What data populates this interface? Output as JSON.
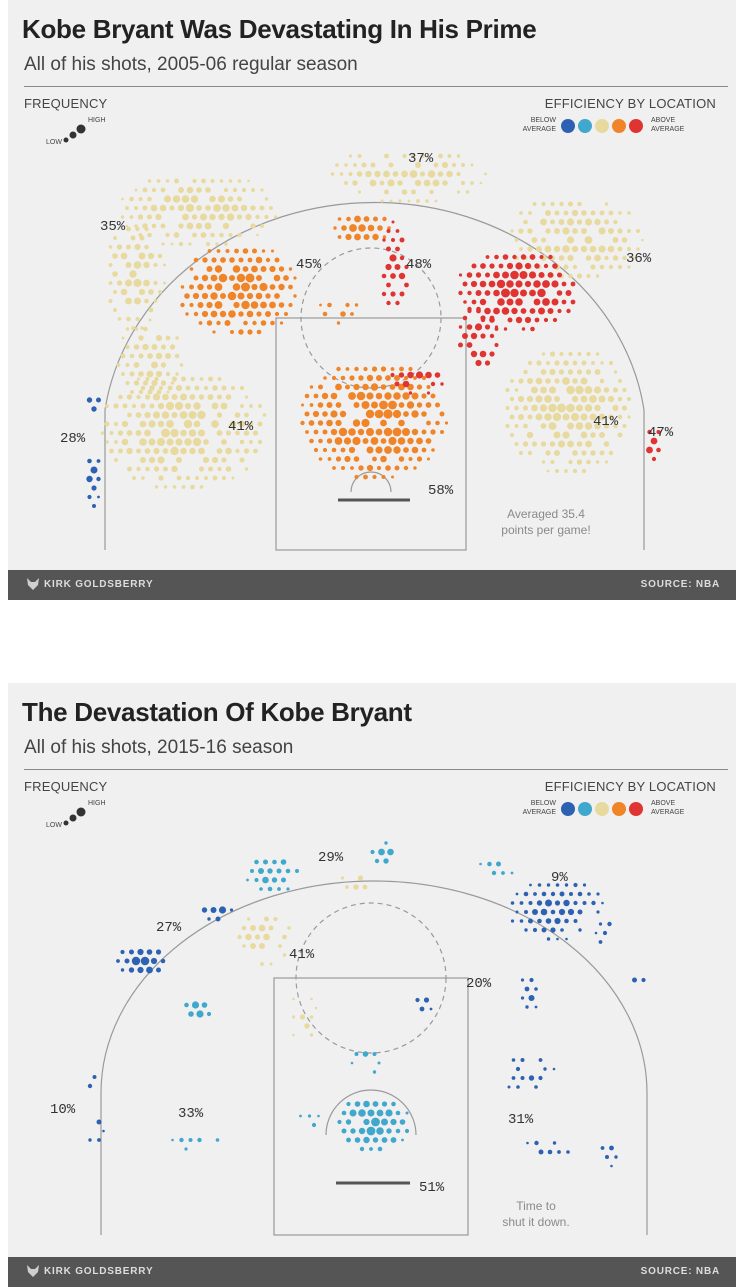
{
  "legend": {
    "frequency_label": "FREQUENCY",
    "low": "LOW",
    "high": "HIGH",
    "efficiency_label": "EFFICIENCY BY LOCATION",
    "below_line1": "BELOW",
    "below_line2": "AVERAGE",
    "above_line1": "ABOVE",
    "above_line2": "AVERAGE",
    "scale_colors": [
      "#2d62b3",
      "#3fa8cc",
      "#e8da9e",
      "#f08428",
      "#e03432"
    ]
  },
  "colors": {
    "below_dark": "#2d62b3",
    "below": "#3fa8cc",
    "average": "#e8da9e",
    "above": "#f08428",
    "above_dark": "#e03432",
    "frequency": "#333333",
    "footer": "#555555"
  },
  "footer": {
    "credit": "KIRK GOLDSBERRY",
    "source": "SOURCE: NBA",
    "fox_icon": "fox-logo-icon"
  },
  "chart_data": [
    {
      "type": "heatmap",
      "title": "Kobe Bryant Was Devastating In His Prime",
      "subtitle": "All of his shots, 2005-06 regular season",
      "note_line1": "Averaged 35.4",
      "note_line2": "points per game!",
      "zones": [
        {
          "label": "35%",
          "value": 35,
          "efficiency": "average"
        },
        {
          "label": "37%",
          "value": 37,
          "efficiency": "average"
        },
        {
          "label": "36%",
          "value": 36,
          "efficiency": "average"
        },
        {
          "label": "45%",
          "value": 45,
          "efficiency": "above"
        },
        {
          "label": "48%",
          "value": 48,
          "efficiency": "above_dark"
        },
        {
          "label": "28%",
          "value": 28,
          "efficiency": "below_dark"
        },
        {
          "label": "41%",
          "value": 41,
          "efficiency": "average"
        },
        {
          "label": "41%",
          "value": 41,
          "efficiency": "average"
        },
        {
          "label": "47%",
          "value": 47,
          "efficiency": "above_dark"
        },
        {
          "label": "58%",
          "value": 58,
          "efficiency": "above"
        }
      ]
    },
    {
      "type": "heatmap",
      "title": "The Devastation Of Kobe Bryant",
      "subtitle": "All of his shots, 2015-16 season",
      "note_line1": "Time to",
      "note_line2": "shut it down.",
      "zones": [
        {
          "label": "29%",
          "value": 29,
          "efficiency": "below"
        },
        {
          "label": "9%",
          "value": 9,
          "efficiency": "below_dark"
        },
        {
          "label": "27%",
          "value": 27,
          "efficiency": "below_dark"
        },
        {
          "label": "41%",
          "value": 41,
          "efficiency": "average"
        },
        {
          "label": "20%",
          "value": 20,
          "efficiency": "below_dark"
        },
        {
          "label": "10%",
          "value": 10,
          "efficiency": "below_dark"
        },
        {
          "label": "33%",
          "value": 33,
          "efficiency": "below"
        },
        {
          "label": "31%",
          "value": 31,
          "efficiency": "below_dark"
        },
        {
          "label": "51%",
          "value": 51,
          "efficiency": "below"
        }
      ]
    }
  ]
}
